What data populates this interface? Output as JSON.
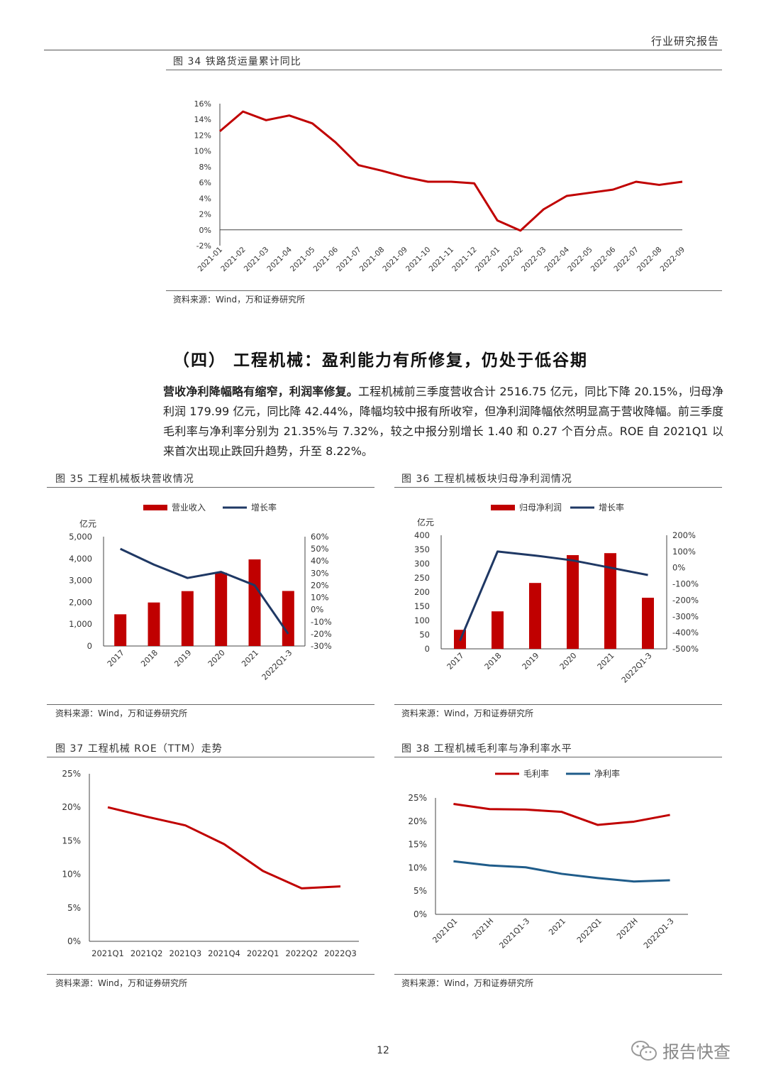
{
  "header": {
    "title": "行业研究报告"
  },
  "fig34": {
    "title": "图 34    铁路货运量累计同比",
    "source": "资料来源：Wind，万和证券研究所",
    "chart_data": {
      "type": "line",
      "categories": [
        "2021-01",
        "2021-02",
        "2021-03",
        "2021-04",
        "2021-05",
        "2021-06",
        "2021-07",
        "2021-08",
        "2021-09",
        "2021-10",
        "2021-11",
        "2021-12",
        "2022-01",
        "2022-02",
        "2022-03",
        "2022-04",
        "2022-05",
        "2022-06",
        "2022-07",
        "2022-08",
        "2022-09"
      ],
      "series": [
        {
          "values": [
            12.5,
            15.0,
            13.9,
            14.5,
            13.5,
            11.1,
            8.2,
            7.5,
            6.7,
            6.1,
            6.1,
            5.9,
            1.2,
            -0.1,
            2.6,
            4.3,
            4.7,
            5.1,
            6.1,
            5.7,
            6.1
          ]
        }
      ],
      "ytick_labels": [
        "16%",
        "14%",
        "12%",
        "10%",
        "8%",
        "6%",
        "4%",
        "2%",
        "0%",
        "-2%"
      ],
      "ylim": [
        -2,
        16
      ],
      "color": "#c00000"
    }
  },
  "section": {
    "title": "（四）  工程机械：盈利能力有所修复，仍处于低谷期",
    "para_bold": "营收净利降幅略有缩窄，利润率修复。",
    "para_text": "工程机械前三季度营收合计 2516.75 亿元，同比下降 20.15%，归母净利润 179.99 亿元，同比降 42.44%，降幅均较中报有所收窄，但净利润降幅依然明显高于营收降幅。前三季度毛利率与净利率分别为 21.35%与 7.32%，较之中报分别增长 1.40 和 0.27 个百分点。ROE 自 2021Q1 以来首次出现止跌回升趋势，升至 8.22%。"
  },
  "fig35": {
    "title": "图 35    工程机械板块营收情况",
    "source": "资料来源：Wind，万和证券研究所",
    "chart_data": {
      "type": "bar",
      "categories": [
        "2017",
        "2018",
        "2019",
        "2020",
        "2021",
        "2022Q1-3"
      ],
      "series": [
        {
          "name": "营业收入",
          "type": "bar",
          "axis": "left",
          "values": [
            1450,
            1990,
            2510,
            3350,
            3960,
            2517
          ],
          "color": "#c00000"
        },
        {
          "name": "增长率",
          "type": "line",
          "axis": "right",
          "values": [
            50,
            37,
            26,
            31,
            20,
            -20
          ],
          "color": "#1f3864"
        }
      ],
      "left_unit": "亿元",
      "left_ticks": [
        "5,000",
        "4,000",
        "3,000",
        "2,000",
        "1,000",
        "0"
      ],
      "ylim_left": [
        0,
        5000
      ],
      "right_ticks": [
        "60%",
        "50%",
        "40%",
        "30%",
        "20%",
        "10%",
        "0%",
        "-10%",
        "-20%",
        "-30%"
      ],
      "ylim_right": [
        -30,
        60
      ]
    }
  },
  "fig36": {
    "title": "图 36    工程机械板块归母净利润情况",
    "source": "资料来源：Wind，万和证券研究所",
    "chart_data": {
      "type": "bar",
      "categories": [
        "2017",
        "2018",
        "2019",
        "2020",
        "2021",
        "2022Q1-3"
      ],
      "series": [
        {
          "name": "归母净利润",
          "type": "bar",
          "axis": "left",
          "values": [
            67,
            132,
            232,
            330,
            337,
            180
          ],
          "color": "#c00000"
        },
        {
          "name": "增长率",
          "type": "line",
          "axis": "right",
          "values": [
            -450,
            100,
            75,
            45,
            0,
            -45
          ],
          "color": "#1f3864"
        }
      ],
      "left_unit": "亿元",
      "left_ticks": [
        "400",
        "350",
        "300",
        "250",
        "200",
        "150",
        "100",
        "50",
        "0"
      ],
      "ylim_left": [
        0,
        400
      ],
      "right_ticks": [
        "200%",
        "100%",
        "0%",
        "-100%",
        "-200%",
        "-300%",
        "-400%",
        "-500%"
      ],
      "ylim_right": [
        -500,
        200
      ]
    }
  },
  "fig37": {
    "title": "图 37    工程机械 ROE（TTM）走势",
    "source": "资料来源：Wind，万和证券研究所",
    "chart_data": {
      "type": "line",
      "categories": [
        "2021Q1",
        "2021Q2",
        "2021Q3",
        "2021Q4",
        "2022Q1",
        "2022Q2",
        "2022Q3"
      ],
      "series": [
        {
          "values": [
            20.0,
            18.6,
            17.3,
            14.5,
            10.5,
            7.9,
            8.2
          ],
          "color": "#c00000"
        }
      ],
      "ytick_labels": [
        "25%",
        "20%",
        "15%",
        "10%",
        "5%",
        "0%"
      ],
      "ylim": [
        0,
        25
      ]
    }
  },
  "fig38": {
    "title": "图 38    工程机械毛利率与净利率水平",
    "source": "资料来源：Wind，万和证券研究所",
    "chart_data": {
      "type": "line",
      "categories": [
        "2021Q1",
        "2021H",
        "2021Q1-3",
        "2021",
        "2022Q1",
        "2022H",
        "2022Q1-3"
      ],
      "series": [
        {
          "name": "毛利率",
          "values": [
            23.7,
            22.6,
            22.5,
            22.0,
            19.2,
            19.9,
            21.35
          ],
          "color": "#c00000"
        },
        {
          "name": "净利率",
          "values": [
            11.4,
            10.5,
            10.1,
            8.7,
            7.8,
            7.05,
            7.32
          ],
          "color": "#1f5c8a"
        }
      ],
      "ytick_labels": [
        "25%",
        "20%",
        "15%",
        "10%",
        "5%",
        "0%"
      ],
      "ylim": [
        0,
        25
      ]
    }
  },
  "footer": {
    "page_number": "12",
    "watermark": "报告快查"
  }
}
